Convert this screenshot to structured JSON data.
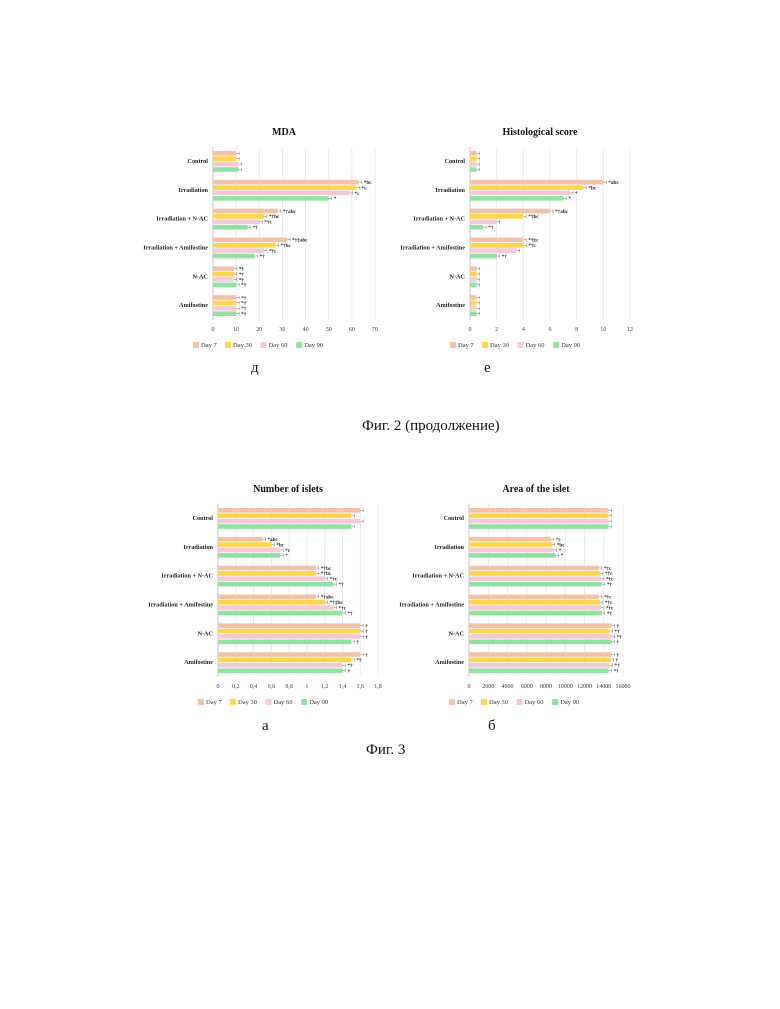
{
  "legend_labels": [
    "Day 7",
    "Day 30",
    "Day 60",
    "Day 90"
  ],
  "colors": [
    "#f4c2a6",
    "#ffd54a",
    "#f5c9d6",
    "#8fe3a0"
  ],
  "captions": {
    "mda_letter": "д",
    "hist_letter": "е",
    "fig2": "Фиг. 2 (продолжение)",
    "islets_letter": "а",
    "area_letter": "б",
    "fig3": "Фиг. 3"
  },
  "chart_data": [
    {
      "type": "bar",
      "title": "MDA",
      "categories": [
        "Control",
        "Irradiation",
        "Irradiation + N-AC",
        "Irradiation + Amifostine",
        "N-AC",
        "Amifostine"
      ],
      "xlim": [
        0,
        70
      ],
      "ticks": [
        "0",
        "10",
        "20",
        "30",
        "40",
        "50",
        "60",
        "70"
      ],
      "tick_values": [
        0,
        10,
        20,
        30,
        40,
        50,
        60,
        70
      ],
      "series": [
        {
          "name": "Day 7",
          "values": [
            10,
            63,
            28,
            32,
            9,
            10
          ]
        },
        {
          "name": "Day 30",
          "values": [
            10,
            62,
            22,
            27,
            9,
            10
          ]
        },
        {
          "name": "Day 60",
          "values": [
            11,
            59,
            20,
            22,
            9,
            10
          ]
        },
        {
          "name": "Day 90",
          "values": [
            11,
            50,
            15,
            18,
            10,
            10
          ]
        }
      ],
      "annotations": [
        [
          "",
          "*bc",
          "*†abc",
          "*†‡abc",
          "*†",
          "*†"
        ],
        [
          "",
          "*c",
          "*†bc",
          "*†bc",
          "*†",
          "*†"
        ],
        [
          "",
          "*c",
          "*†c",
          "*†c",
          "*†",
          "*†"
        ],
        [
          "",
          "*",
          "*†",
          "*†",
          "*†",
          "*†"
        ]
      ]
    },
    {
      "type": "bar",
      "title": "Histological score",
      "categories": [
        "Control",
        "Irradiation",
        "Irradiation + N-AC",
        "Irradiation + Amifostine",
        "N-AC",
        "Amifostine"
      ],
      "xlim": [
        0,
        12
      ],
      "ticks": [
        "0",
        "2",
        "4",
        "6",
        "8",
        "10",
        "12"
      ],
      "tick_values": [
        0,
        2,
        4,
        6,
        8,
        10,
        12
      ],
      "series": [
        {
          "name": "Day 7",
          "values": [
            0.5,
            10,
            6,
            4,
            0.5,
            0.5
          ]
        },
        {
          "name": "Day 30",
          "values": [
            0.5,
            8.5,
            4,
            4,
            0.5,
            0.5
          ]
        },
        {
          "name": "Day 60",
          "values": [
            0.5,
            7.5,
            2,
            3.5,
            0.5,
            0.5
          ]
        },
        {
          "name": "Day 90",
          "values": [
            0.5,
            7,
            1,
            2,
            0.5,
            0.5
          ]
        }
      ],
      "annotations": [
        [
          "",
          "*abc",
          "*†abc",
          "*†‡c",
          "",
          ""
        ],
        [
          "",
          "*bc",
          "*†bc",
          "*†c",
          "",
          ""
        ],
        [
          "",
          "*",
          "",
          "",
          "",
          ""
        ],
        [
          "",
          "*",
          "*†",
          "*†",
          "",
          ""
        ]
      ]
    },
    {
      "type": "bar",
      "title": "Number of islets",
      "categories": [
        "Control",
        "Irradiation",
        "Irradiation + N-AC",
        "Irradiation + Amifostine",
        "N-AC",
        "Amifostine"
      ],
      "xlim": [
        0,
        1.8
      ],
      "ticks": [
        "0",
        "0,2",
        "0,4",
        "0,6",
        "0,8",
        "1",
        "1,2",
        "1,4",
        "1,6",
        "1,8"
      ],
      "tick_values": [
        0,
        0.2,
        0.4,
        0.6,
        0.8,
        1.0,
        1.2,
        1.4,
        1.6,
        1.8
      ],
      "series": [
        {
          "name": "Day 7",
          "values": [
            1.6,
            0.5,
            1.1,
            1.1,
            1.6,
            1.6
          ]
        },
        {
          "name": "Day 30",
          "values": [
            1.5,
            0.6,
            1.1,
            1.2,
            1.6,
            1.5
          ]
        },
        {
          "name": "Day 60",
          "values": [
            1.6,
            0.7,
            1.2,
            1.3,
            1.6,
            1.4
          ]
        },
        {
          "name": "Day 90",
          "values": [
            1.5,
            0.7,
            1.3,
            1.4,
            1.5,
            1.4
          ]
        }
      ],
      "annotations": [
        [
          "",
          "*abc",
          "*†bc",
          "*†abc",
          "†",
          "†"
        ],
        [
          "",
          "*bc",
          "*†bc",
          "*†‡bc",
          "†",
          "*†"
        ],
        [
          "",
          "*c",
          "*†c",
          "*†c",
          "†",
          "*†"
        ],
        [
          "",
          "*",
          "*†",
          "*†",
          "†",
          "†"
        ]
      ]
    },
    {
      "type": "bar",
      "title": "Area of the islet",
      "categories": [
        "Control",
        "Irradiation",
        "Irradiation + N-AC",
        "Irradiation + Amifostine",
        "N-AC",
        "Amifostine"
      ],
      "xlim": [
        0,
        16000
      ],
      "ticks": [
        "0",
        "2000",
        "4000",
        "6000",
        "8000",
        "10000",
        "12000",
        "14000",
        "16000"
      ],
      "tick_values": [
        0,
        2000,
        4000,
        6000,
        8000,
        10000,
        12000,
        14000,
        16000
      ],
      "series": [
        {
          "name": "Day 7",
          "values": [
            14500,
            8500,
            13500,
            13500,
            14800,
            14800
          ]
        },
        {
          "name": "Day 30",
          "values": [
            14500,
            8600,
            13600,
            13600,
            14600,
            14700
          ]
        },
        {
          "name": "Day 60",
          "values": [
            14500,
            8800,
            13700,
            13700,
            14800,
            14600
          ]
        },
        {
          "name": "Day 90",
          "values": [
            14500,
            9000,
            13800,
            13800,
            14800,
            14500
          ]
        }
      ],
      "annotations": [
        [
          "",
          "*c",
          "*†c",
          "*†c",
          "†",
          "†"
        ],
        [
          "",
          "*bc",
          "*†c",
          "*†c",
          "*†",
          "†"
        ],
        [
          "",
          "*",
          "*†c",
          "*†c",
          "*†",
          "*†"
        ],
        [
          "",
          "*",
          "*†",
          "*†",
          "†",
          "*†"
        ]
      ]
    }
  ]
}
